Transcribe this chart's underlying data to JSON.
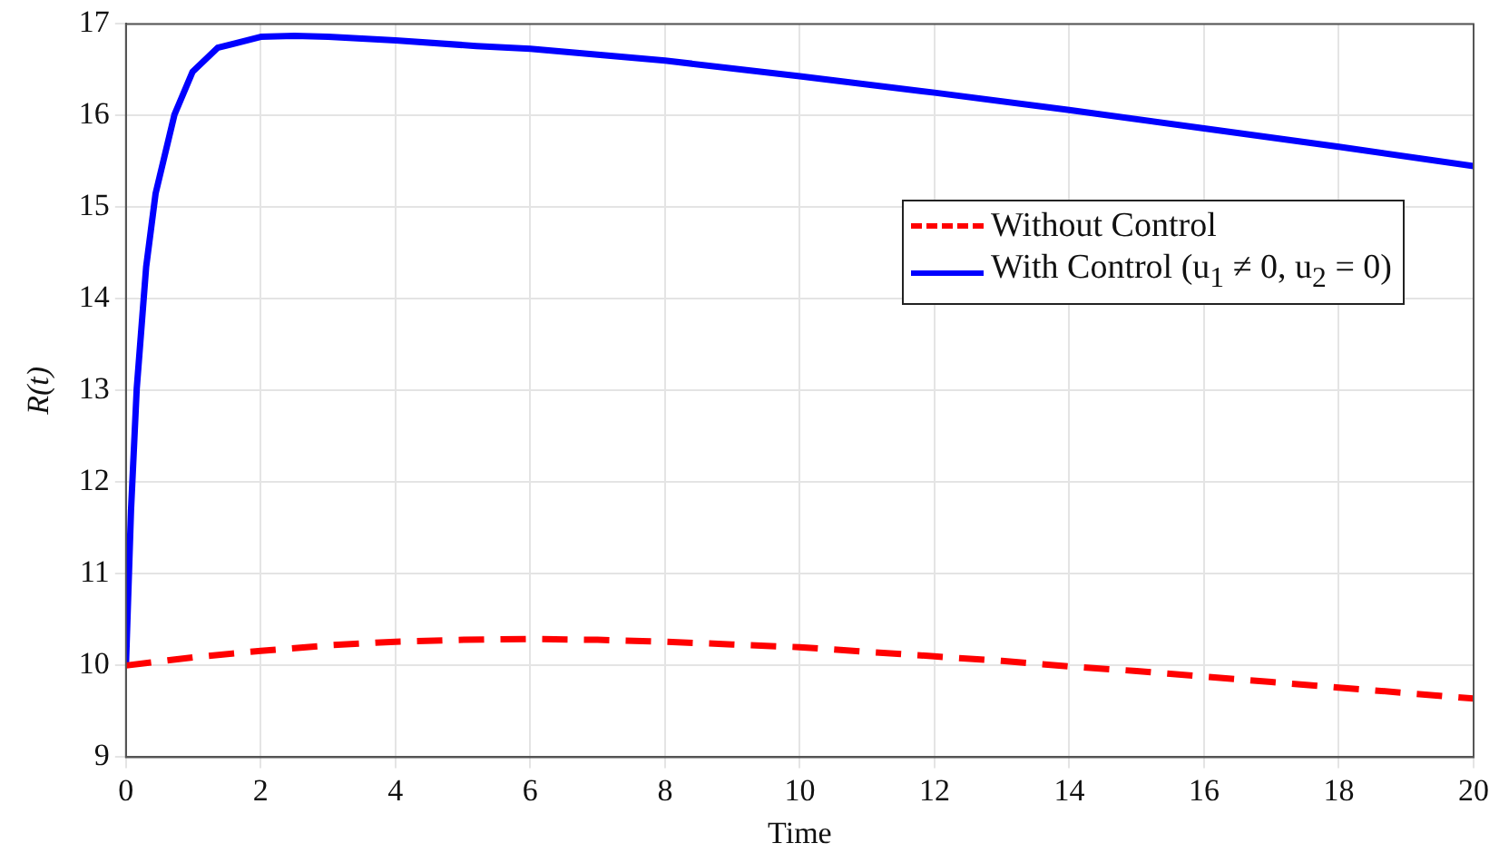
{
  "chart_data": {
    "type": "line",
    "xlabel": "Time",
    "ylabel": "R(t)",
    "xlim": [
      0,
      20
    ],
    "xticks": [
      0,
      2,
      4,
      6,
      8,
      10,
      12,
      14,
      16,
      18,
      20
    ],
    "ylim": [
      9,
      17
    ],
    "yticks": [
      9,
      10,
      11,
      12,
      13,
      14,
      15,
      16,
      17
    ],
    "grid": true,
    "legend": "right",
    "marker": "none",
    "series": [
      {
        "name": "Without Control",
        "color": "#ff0000",
        "line_style": "dashed",
        "x": [
          0,
          1,
          2,
          3,
          4,
          5,
          6,
          7,
          8,
          9,
          10,
          11,
          12,
          13,
          14,
          15,
          16,
          17,
          18,
          19,
          20
        ],
        "values": [
          10,
          10.09,
          10.16,
          10.22,
          10.26,
          10.28,
          10.29,
          10.28,
          10.26,
          10.23,
          10.2,
          10.15,
          10.1,
          10.05,
          9.99,
          9.94,
          9.88,
          9.82,
          9.76,
          9.7,
          9.64
        ]
      },
      {
        "name": "With Control (u$_{1}$ ≠ 0, u$_{2}$ = 0)",
        "color": "#0000ff",
        "line_style": "solid",
        "x": [
          0,
          0.075,
          0.16,
          0.3,
          0.44,
          0.72,
          0.99,
          1.36,
          2,
          2.5,
          3,
          4,
          5.2,
          6,
          8,
          10,
          12,
          14,
          16,
          18,
          20
        ],
        "values": [
          10,
          11.69,
          13.02,
          14.35,
          15.15,
          16.01,
          16.48,
          16.74,
          16.86,
          16.87,
          16.86,
          16.82,
          16.76,
          16.73,
          16.6,
          16.43,
          16.25,
          16.06,
          15.86,
          15.66,
          15.45
        ]
      }
    ]
  }
}
